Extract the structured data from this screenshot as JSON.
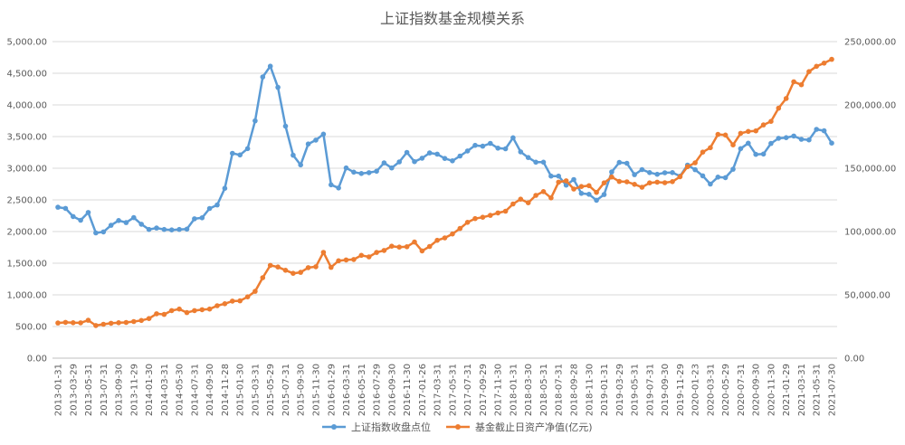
{
  "chart_data": {
    "type": "line",
    "title": "上证指数基金规模关系",
    "xlabel": "",
    "ylabel": "",
    "ylim_left": [
      0,
      5000
    ],
    "ylim_right": [
      0,
      250000
    ],
    "y_ticks_left": [
      "0.00",
      "500.00",
      "1,000.00",
      "1,500.00",
      "2,000.00",
      "2,500.00",
      "3,000.00",
      "3,500.00",
      "4,000.00",
      "4,500.00",
      "5,000.00"
    ],
    "y_ticks_right": [
      "0.00",
      "50,000.00",
      "100,000.00",
      "150,000.00",
      "200,000.00",
      "250,000.00"
    ],
    "x_tick_labels": [
      "2013-01-31",
      "2013-03-29",
      "2013-05-31",
      "2013-07-31",
      "2013-09-30",
      "2013-11-29",
      "2014-01-30",
      "2014-03-31",
      "2014-05-30",
      "2014-07-31",
      "2014-09-30",
      "2014-11-28",
      "2015-01-30",
      "2015-03-31",
      "2015-05-29",
      "2015-07-31",
      "2015-09-30",
      "2015-11-30",
      "2016-01-29",
      "2016-03-31",
      "2016-05-31",
      "2016-07-29",
      "2016-09-30",
      "2016-11-30",
      "2017-01-26",
      "2017-03-31",
      "2017-05-31",
      "2017-07-31",
      "2017-09-29",
      "2017-11-30",
      "2018-01-31",
      "2018-03-30",
      "2018-05-31",
      "2018-07-31",
      "2018-09-28",
      "2018-11-30",
      "2019-01-31",
      "2019-03-29",
      "2019-05-31",
      "2019-07-31",
      "2019-09-30",
      "2019-11-29",
      "2020-01-23",
      "2020-03-31",
      "2020-05-29",
      "2020-07-31",
      "2020-09-30",
      "2020-11-30",
      "2021-01-29",
      "2021-03-31",
      "2021-05-31",
      "2021-07-30"
    ],
    "legend_position": "bottom",
    "grid": true,
    "series": [
      {
        "name": "上证指数收盘点位",
        "axis": "left",
        "color": "#5B9BD5",
        "values": [
          2385,
          2366,
          2237,
          2178,
          2301,
          1979,
          1994,
          2098,
          2175,
          2141,
          2220,
          2116,
          2033,
          2056,
          2033,
          2026,
          2033,
          2039,
          2201,
          2217,
          2364,
          2420,
          2683,
          3235,
          3210,
          3310,
          3748,
          4442,
          4612,
          4277,
          3664,
          3206,
          3053,
          3383,
          3445,
          3539,
          2738,
          2688,
          3004,
          2938,
          2917,
          2930,
          2953,
          3085,
          3005,
          3100,
          3250,
          3104,
          3159,
          3241,
          3223,
          3155,
          3117,
          3193,
          3273,
          3361,
          3349,
          3393,
          3317,
          3307,
          3481,
          3259,
          3169,
          3095,
          3096,
          2876,
          2876,
          2733,
          2822,
          2603,
          2588,
          2494,
          2584,
          2941,
          3091,
          3078,
          2899,
          2978,
          2932,
          2905,
          2929,
          2932,
          2875,
          3050,
          2977,
          2880,
          2750,
          2860,
          2852,
          2985,
          3310,
          3396,
          3218,
          3225,
          3391,
          3473,
          3483,
          3509,
          3457,
          3447,
          3615,
          3591,
          3397
        ]
      },
      {
        "name": "基金截止日资产净值(亿元)",
        "axis": "right",
        "color": "#ED7D31",
        "values": [
          27800,
          28300,
          28000,
          27900,
          29900,
          25800,
          26800,
          27600,
          28000,
          28200,
          28900,
          29800,
          31300,
          35100,
          34600,
          37600,
          38800,
          36000,
          37600,
          38300,
          38800,
          41400,
          43000,
          45100,
          45300,
          48400,
          52800,
          63600,
          73300,
          72000,
          69400,
          67000,
          67800,
          71500,
          72200,
          83600,
          71700,
          76900,
          77600,
          77900,
          81200,
          80000,
          83500,
          85100,
          88400,
          87700,
          88000,
          91700,
          84700,
          88200,
          93100,
          95000,
          98100,
          102400,
          107300,
          110200,
          111300,
          112800,
          114700,
          116100,
          121800,
          125600,
          122700,
          128600,
          131600,
          126600,
          139000,
          140100,
          133600,
          135600,
          136200,
          130900,
          138400,
          143100,
          139600,
          139300,
          137300,
          135000,
          138400,
          139000,
          138600,
          139400,
          143300,
          151200,
          154300,
          162700,
          166200,
          176700,
          176200,
          168400,
          177600,
          179100,
          179500,
          184200,
          187000,
          197400,
          205100,
          218300,
          215900,
          226300,
          230500,
          233000,
          236000
        ]
      }
    ]
  }
}
